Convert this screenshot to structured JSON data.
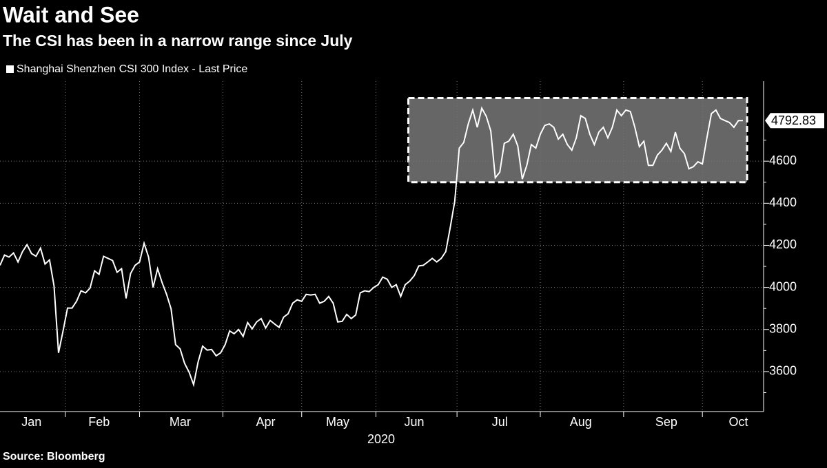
{
  "chart_data": {
    "type": "line",
    "title": "Wait and See",
    "subtitle": "The CSI has been in a narrow range since July",
    "x_label": "2020",
    "source": "Source: Bloomberg",
    "categories": [
      null,
      null,
      null,
      null,
      null,
      null,
      null,
      "Jan",
      null,
      null,
      null,
      null,
      null,
      null,
      null,
      null,
      null,
      null,
      null,
      null,
      null,
      null,
      "Feb",
      null,
      null,
      null,
      null,
      null,
      null,
      null,
      null,
      null,
      null,
      null,
      null,
      null,
      null,
      null,
      null,
      null,
      "Mar",
      null,
      null,
      null,
      null,
      null,
      null,
      null,
      null,
      null,
      null,
      null,
      null,
      null,
      null,
      null,
      null,
      null,
      null,
      "Apr",
      null,
      null,
      null,
      null,
      null,
      null,
      null,
      null,
      null,
      null,
      null,
      null,
      null,
      null,
      null,
      "May",
      null,
      null,
      null,
      null,
      null,
      null,
      null,
      null,
      null,
      null,
      null,
      null,
      null,
      null,
      null,
      null,
      "Jun",
      null,
      null,
      null,
      null,
      null,
      null,
      null,
      null,
      null,
      null,
      null,
      null,
      null,
      null,
      null,
      null,
      null,
      null,
      "Jul",
      null,
      null,
      null,
      null,
      null,
      null,
      null,
      null,
      null,
      null,
      null,
      null,
      null,
      null,
      null,
      null,
      null,
      "Aug",
      null,
      null,
      null,
      null,
      null,
      null,
      null,
      null,
      null,
      null,
      null,
      null,
      null,
      null,
      null,
      null,
      null,
      null,
      "Sep",
      null,
      null,
      null,
      null,
      null,
      null,
      null,
      null,
      null,
      null,
      null,
      null,
      null,
      null,
      null,
      "Oct",
      null
    ],
    "series": [
      {
        "name": "Shanghai Shenzhen CSI 300 Index - Last Price",
        "color": "#ffffff",
        "values": [
          4105,
          4154,
          4144,
          4164,
          4121,
          4170,
          4203,
          4161,
          4148,
          4187,
          4111,
          4131,
          4007,
          3689,
          3793,
          3902,
          3902,
          3934,
          3984,
          3974,
          3997,
          4079,
          4062,
          4148,
          4138,
          4128,
          4072,
          4089,
          3948,
          4066,
          4105,
          4121,
          4210,
          4144,
          4000,
          4089,
          4023,
          3967,
          3898,
          3728,
          3708,
          3639,
          3597,
          3538,
          3646,
          3721,
          3702,
          3705,
          3675,
          3689,
          3728,
          3793,
          3780,
          3800,
          3767,
          3833,
          3803,
          3836,
          3852,
          3807,
          3843,
          3826,
          3810,
          3859,
          3875,
          3925,
          3941,
          3934,
          3967,
          3964,
          3967,
          3925,
          3934,
          3957,
          3925,
          3836,
          3839,
          3872,
          3852,
          3869,
          3974,
          3984,
          3980,
          4000,
          4013,
          4049,
          4039,
          4000,
          4013,
          3957,
          4013,
          4030,
          4056,
          4102,
          4105,
          4121,
          4138,
          4121,
          4138,
          4170,
          4285,
          4410,
          4662,
          4689,
          4777,
          4843,
          4761,
          4852,
          4813,
          4744,
          4521,
          4548,
          4685,
          4695,
          4728,
          4672,
          4515,
          4580,
          4679,
          4662,
          4728,
          4770,
          4777,
          4761,
          4705,
          4728,
          4679,
          4652,
          4711,
          4816,
          4803,
          4728,
          4679,
          4738,
          4761,
          4711,
          4761,
          4843,
          4816,
          4843,
          4836,
          4761,
          4669,
          4695,
          4580,
          4580,
          4629,
          4652,
          4685,
          4646,
          4738,
          4662,
          4636,
          4564,
          4574,
          4597,
          4587,
          4711,
          4826,
          4843,
          4803,
          4793,
          4784,
          4761,
          4793,
          4792.83
        ]
      }
    ],
    "last_label": "4792.83",
    "highlight_range": [
      4500,
      4900
    ],
    "ylim": [
      3410,
      4980
    ],
    "yticks": [
      3600,
      3800,
      4000,
      4200,
      4400,
      4600
    ],
    "grid": true,
    "axis_side": "right"
  }
}
